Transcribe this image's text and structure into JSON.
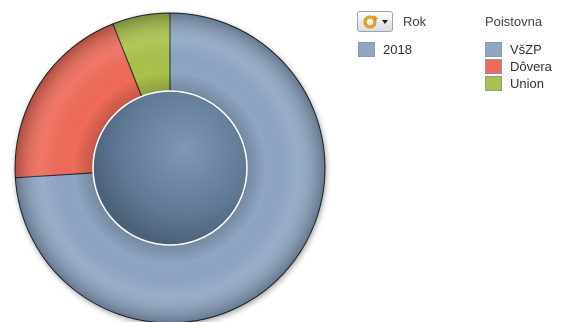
{
  "chart_data": {
    "type": "pie",
    "variant": "donut",
    "title": "",
    "cycle_dimension": "Rok",
    "dimension": "Poistovna",
    "colors": [
      "#8ea6c4",
      "#f06a58",
      "#a9c24c"
    ],
    "slices": [
      {
        "label": "VšZP",
        "value": 74
      },
      {
        "label": "Dôvera",
        "value": 20
      },
      {
        "label": "Union",
        "value": 6
      }
    ],
    "cycle_legend": [
      {
        "label": "2018",
        "color": "#8ea6c4"
      }
    ]
  },
  "ui": {
    "cycle_button_icon": "cycle-arrow-icon"
  }
}
